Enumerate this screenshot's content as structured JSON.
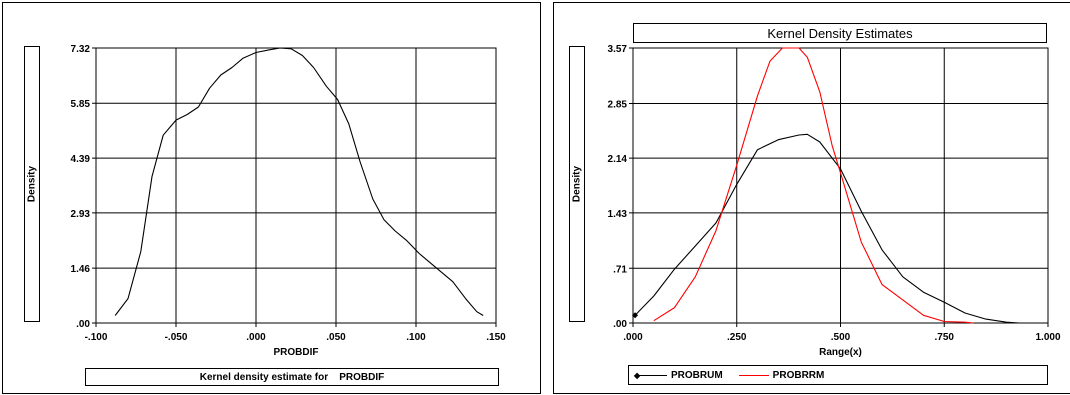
{
  "colors": {
    "grid": "#000000",
    "series_black": "#000000",
    "series_red": "#ff0000"
  },
  "chart_data": [
    {
      "type": "line",
      "title": "",
      "xlabel": "PROBDIF",
      "ylabel": "Density",
      "caption": "Kernel density estimate for    PROBDIF",
      "xlim": [
        -0.1,
        0.15
      ],
      "ylim": [
        0,
        7.32
      ],
      "x_ticks": [
        -0.1,
        -0.05,
        0.0,
        0.05,
        0.1,
        0.15
      ],
      "x_tick_labels": [
        "-.100",
        "-.050",
        ".000",
        ".050",
        ".100",
        ".150"
      ],
      "y_ticks": [
        0,
        1.46,
        2.93,
        4.39,
        5.85,
        7.32
      ],
      "y_tick_labels": [
        ".00",
        "1.46",
        "2.93",
        "4.39",
        "5.85",
        "7.32"
      ],
      "grid": true,
      "series": [
        {
          "color": "#000000",
          "x": [
            -0.088,
            -0.08,
            -0.072,
            -0.065,
            -0.058,
            -0.05,
            -0.043,
            -0.036,
            -0.029,
            -0.022,
            -0.015,
            -0.008,
            0.0,
            0.008,
            0.015,
            0.022,
            0.029,
            0.036,
            0.044,
            0.051,
            0.058,
            0.065,
            0.073,
            0.08,
            0.087,
            0.094,
            0.102,
            0.109,
            0.116,
            0.123,
            0.131,
            0.138,
            0.142
          ],
          "y": [
            0.2,
            0.65,
            1.9,
            3.9,
            5.0,
            5.4,
            5.55,
            5.75,
            6.25,
            6.6,
            6.8,
            7.05,
            7.2,
            7.27,
            7.32,
            7.3,
            7.12,
            6.8,
            6.3,
            5.95,
            5.3,
            4.3,
            3.3,
            2.75,
            2.45,
            2.2,
            1.85,
            1.6,
            1.35,
            1.1,
            0.65,
            0.3,
            0.2
          ]
        }
      ]
    },
    {
      "type": "line",
      "title": "Kernel Density Estimates",
      "xlabel": "Range(x)",
      "ylabel": "Density",
      "xlim": [
        0,
        1
      ],
      "ylim": [
        0,
        3.57
      ],
      "x_ticks": [
        0,
        0.25,
        0.5,
        0.75,
        1.0
      ],
      "x_tick_labels": [
        ".000",
        ".250",
        ".500",
        ".750",
        "1.000"
      ],
      "y_ticks": [
        0,
        0.71,
        1.43,
        2.14,
        2.85,
        3.57
      ],
      "y_tick_labels": [
        ".00",
        ".71",
        "1.43",
        "2.14",
        "2.85",
        "3.57"
      ],
      "grid": true,
      "legend_position": "bottom",
      "series": [
        {
          "name": "PROBRUM",
          "color": "#000000",
          "marker": "diamond",
          "x": [
            0.005,
            0.05,
            0.1,
            0.15,
            0.2,
            0.25,
            0.3,
            0.35,
            0.4,
            0.42,
            0.45,
            0.5,
            0.55,
            0.6,
            0.65,
            0.7,
            0.75,
            0.8,
            0.85,
            0.9,
            0.93
          ],
          "y": [
            0.1,
            0.35,
            0.7,
            1.0,
            1.3,
            1.8,
            2.25,
            2.38,
            2.44,
            2.45,
            2.35,
            2.0,
            1.45,
            0.95,
            0.6,
            0.4,
            0.27,
            0.13,
            0.05,
            0.01,
            0.0
          ]
        },
        {
          "name": "PROBRRM",
          "color": "#ff0000",
          "x": [
            0.05,
            0.1,
            0.15,
            0.2,
            0.25,
            0.3,
            0.33,
            0.36,
            0.38,
            0.4,
            0.42,
            0.45,
            0.48,
            0.5,
            0.55,
            0.6,
            0.65,
            0.7,
            0.75,
            0.8,
            0.82
          ],
          "y": [
            0.03,
            0.2,
            0.6,
            1.2,
            2.05,
            2.95,
            3.4,
            3.57,
            3.57,
            3.57,
            3.45,
            3.0,
            2.3,
            1.95,
            1.05,
            0.5,
            0.3,
            0.1,
            0.02,
            0.01,
            0.0
          ]
        }
      ]
    }
  ]
}
